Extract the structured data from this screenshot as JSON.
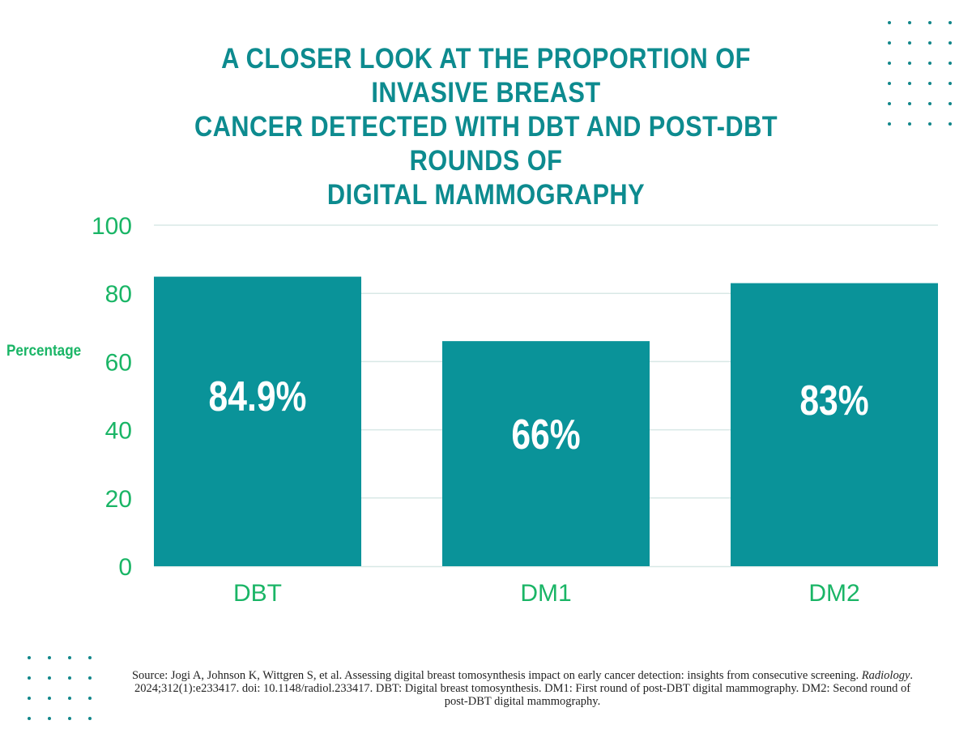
{
  "header": {
    "title_line1": "A CLOSER LOOK AT THE PROPORTION OF INVASIVE BREAST",
    "title_line2": "CANCER DETECTED WITH DBT AND POST-DBT ROUNDS OF",
    "title_line3": "DIGITAL MAMMOGRAPHY"
  },
  "colors": {
    "bar": "#0a9399",
    "axis_text": "#1ab566",
    "title": "#0d8b8f",
    "gridline": "#d8e8e6"
  },
  "chart_data": {
    "type": "bar",
    "title": "A CLOSER LOOK AT THE PROPORTION OF INVASIVE BREAST CANCER DETECTED WITH DBT AND POST-DBT ROUNDS OF DIGITAL MAMMOGRAPHY",
    "xlabel": "",
    "ylabel": "Percentage",
    "categories": [
      "DBT",
      "DM1",
      "DM2"
    ],
    "values": [
      84.9,
      66,
      83
    ],
    "data_labels": [
      "84.9%",
      "66%",
      "83%"
    ],
    "ylim": [
      0,
      100
    ],
    "yticks": [
      0,
      20,
      40,
      60,
      80,
      100
    ],
    "grid": true,
    "legend": "none"
  },
  "source": {
    "prefix": "Source: Jogi A, Johnson K, Wittgren S, et al. Assessing digital breast tomosynthesis impact on early cancer detection: insights from consecutive screening.",
    "journal": "Radiology",
    "suffix": ". 2024;312(1):e233417. doi: 10.1148/radiol.233417. DBT: Digital breast tomosynthesis. DM1: First round of post-DBT digital mammography. DM2: Second round of post-DBT digital mammography."
  }
}
